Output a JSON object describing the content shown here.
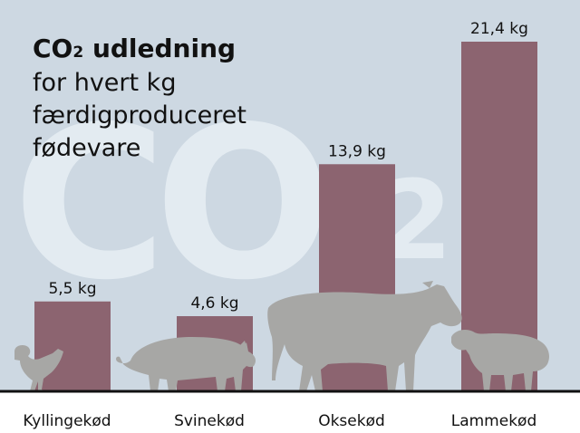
{
  "colors": {
    "background": "#cdd8e2",
    "bar": "#8c6470",
    "watermark": "#e3ebf1",
    "animal": "#a7a7a5",
    "text": "#111111",
    "bottom_band": "#ffffff"
  },
  "watermark": {
    "main": "CO",
    "sub": "2"
  },
  "title": {
    "line1_main": "CO",
    "line1_sub": "2",
    "line1_rest": " udledning",
    "line2": "for hvert kg",
    "line3": "færdigproduceret",
    "line4": "fødevare"
  },
  "chart_data": {
    "type": "bar",
    "categories": [
      "Kyllingekød",
      "Svinekød",
      "Oksekød",
      "Lammekød"
    ],
    "values": [
      5.5,
      4.6,
      13.9,
      21.4
    ],
    "value_labels": [
      "5,5 kg",
      "4,6 kg",
      "13,9 kg",
      "21,4 kg"
    ],
    "unit": "kg",
    "title": "CO₂ udledning for hvert kg færdigproduceret fødevare",
    "xlabel": "",
    "ylabel": "",
    "ylim": [
      0,
      21.4
    ],
    "grid": false,
    "legend": "none",
    "icons": [
      "chicken-icon",
      "pig-icon",
      "cow-icon",
      "sheep-icon"
    ]
  }
}
